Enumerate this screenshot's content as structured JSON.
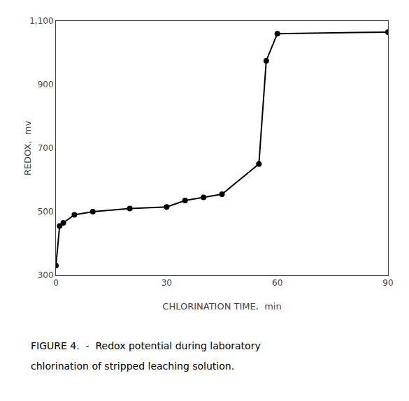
{
  "chart_data": {
    "type": "line",
    "x": [
      0,
      1,
      2,
      5,
      10,
      20,
      30,
      35,
      40,
      45,
      55,
      57,
      60,
      90
    ],
    "values": [
      330,
      455,
      465,
      490,
      500,
      510,
      515,
      535,
      545,
      555,
      650,
      975,
      1060,
      1065
    ],
    "color": "#000000",
    "marker": "circle",
    "line_style": "solid",
    "xlabel": "CHLORINATION TIME,  min",
    "ylabel": "REDOX,  mv",
    "xlim": [
      0,
      90
    ],
    "ylim": [
      300,
      1100
    ],
    "xticks": [
      0,
      30,
      60,
      90
    ],
    "yticks": [
      300,
      500,
      700,
      900,
      {
        "value": 1100,
        "label": "1,100"
      }
    ],
    "annotations": [
      "FIGURE 4.  -  Redox potential during laboratory",
      "chlorination of stripped leaching solution."
    ],
    "grid": false
  }
}
